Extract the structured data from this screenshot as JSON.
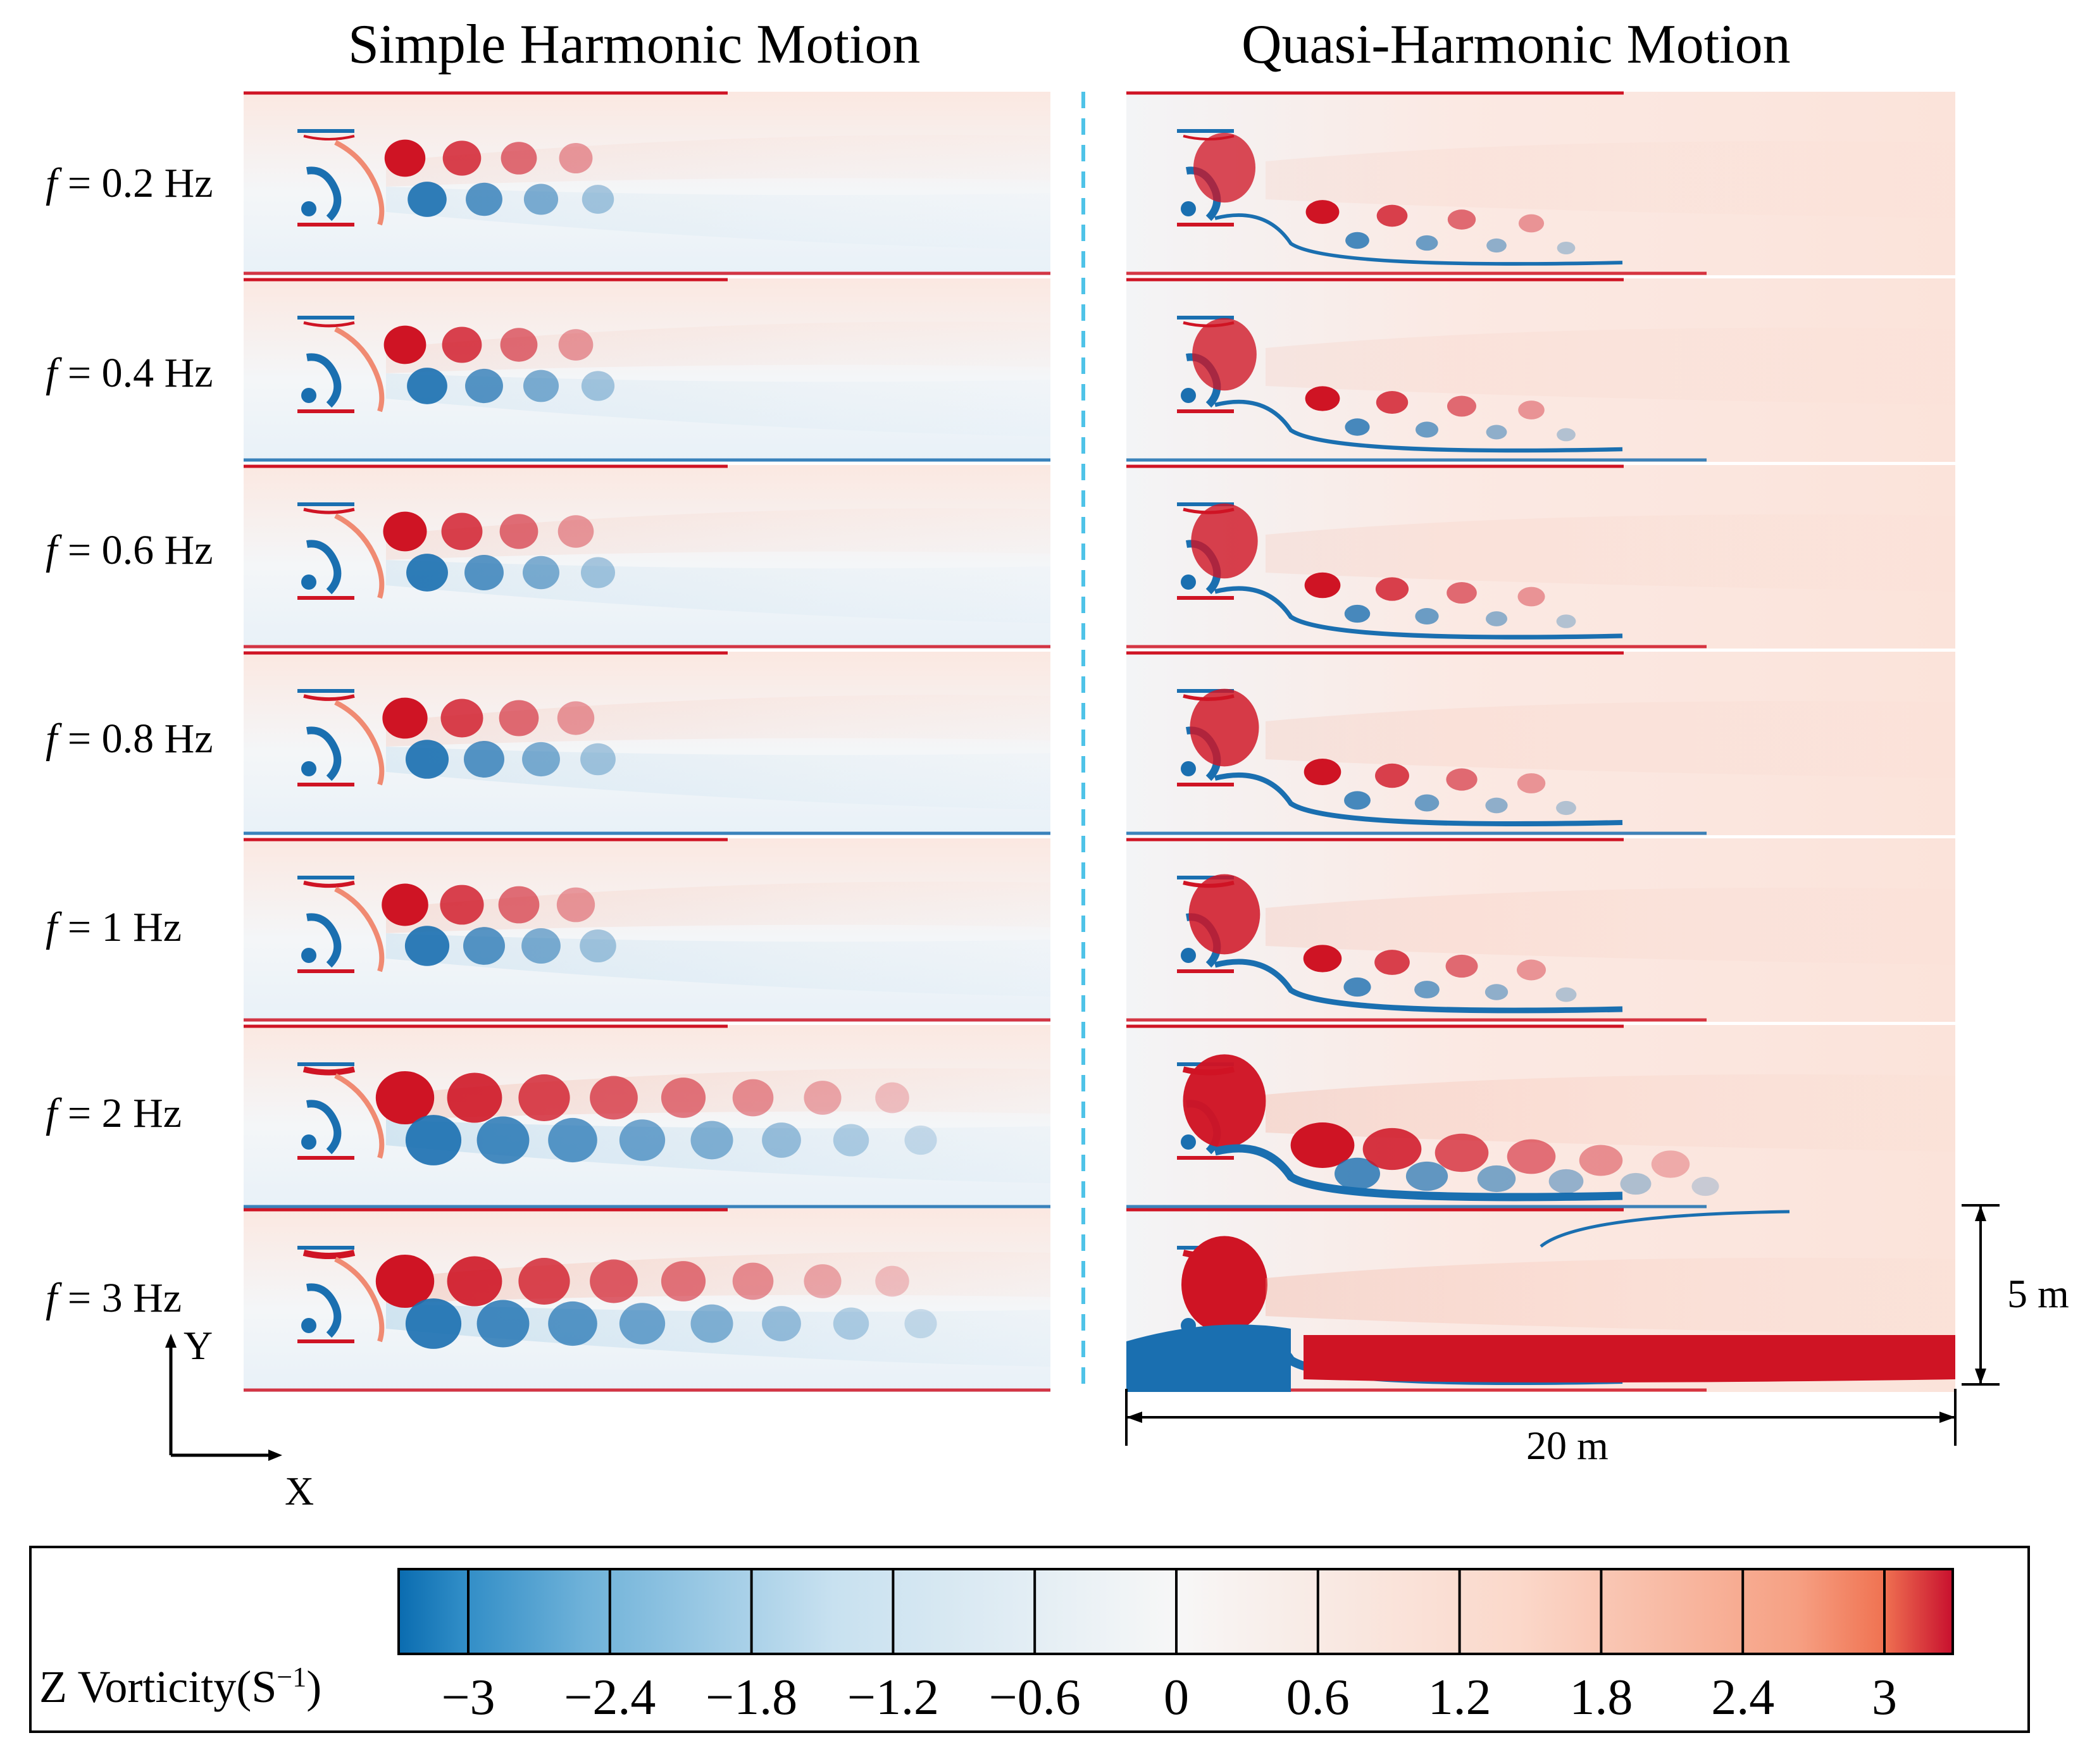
{
  "titles": {
    "left": "Simple Harmonic Motion",
    "right": "Quasi-Harmonic Motion"
  },
  "rows": [
    {
      "symbol": "f",
      "text": " = 0.2 Hz",
      "frequency": 0.2
    },
    {
      "symbol": "f",
      "text": " = 0.4 Hz",
      "frequency": 0.4
    },
    {
      "symbol": "f",
      "text": " = 0.6 Hz",
      "frequency": 0.6
    },
    {
      "symbol": "f",
      "text": " = 0.8 Hz",
      "frequency": 0.8
    },
    {
      "symbol": "f",
      "text": " = 1 Hz",
      "frequency": 1
    },
    {
      "symbol": "f",
      "text": " = 2 Hz",
      "frequency": 2
    },
    {
      "symbol": "f",
      "text": " = 3 Hz",
      "frequency": 3
    }
  ],
  "axes": {
    "y": "Y",
    "x": "X"
  },
  "dimensions": {
    "height": "5 m",
    "width": "20 m"
  },
  "colorbar": {
    "title_main": "Z Vorticity(S",
    "title_sup": "−1",
    "title_end": ")",
    "ticks": [
      "−3",
      "−2.4",
      "−1.8",
      "−1.2",
      "−0.6",
      "0",
      "0.6",
      "1.2",
      "1.8",
      "2.4",
      "3"
    ],
    "min_color": "#0a6cb0",
    "mid_color": "#f7f7f7",
    "max_color": "#c8102e"
  }
}
